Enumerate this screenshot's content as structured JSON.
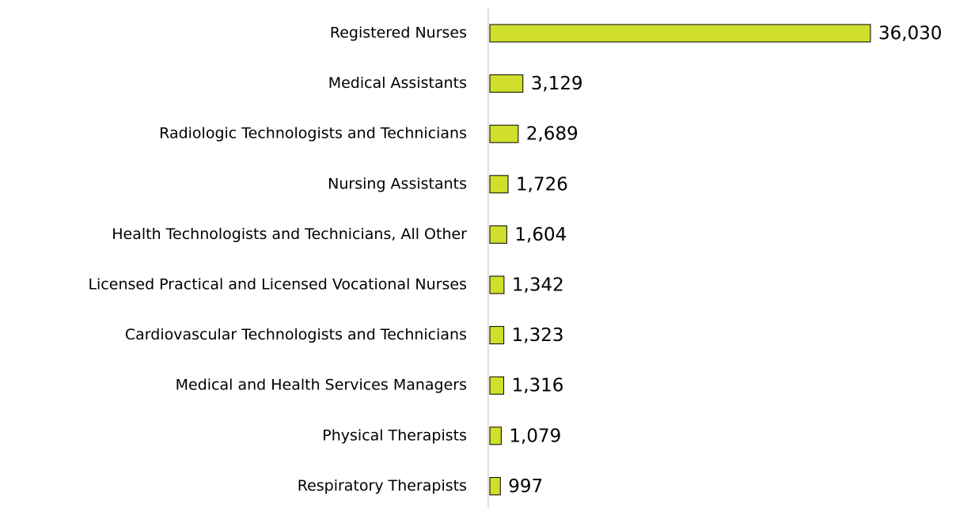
{
  "chart_data": {
    "type": "bar",
    "orientation": "horizontal",
    "categories": [
      "Registered Nurses",
      "Medical Assistants",
      "Radiologic Technologists and Technicians",
      "Nursing Assistants",
      "Health Technologists and Technicians, All Other",
      "Licensed Practical and Licensed Vocational Nurses",
      "Cardiovascular Technologists and Technicians",
      "Medical and Health Services Managers",
      "Physical Therapists",
      "Respiratory Therapists"
    ],
    "values": [
      36030,
      3129,
      2689,
      1726,
      1604,
      1342,
      1323,
      1316,
      1079,
      997
    ],
    "value_labels": [
      "36,030",
      "3,129",
      "2,689",
      "1,726",
      "1,604",
      "1,342",
      "1,323",
      "1,316",
      "1,079",
      "997"
    ],
    "color": "#cfdf2b",
    "xlim": [
      0,
      40000
    ]
  }
}
